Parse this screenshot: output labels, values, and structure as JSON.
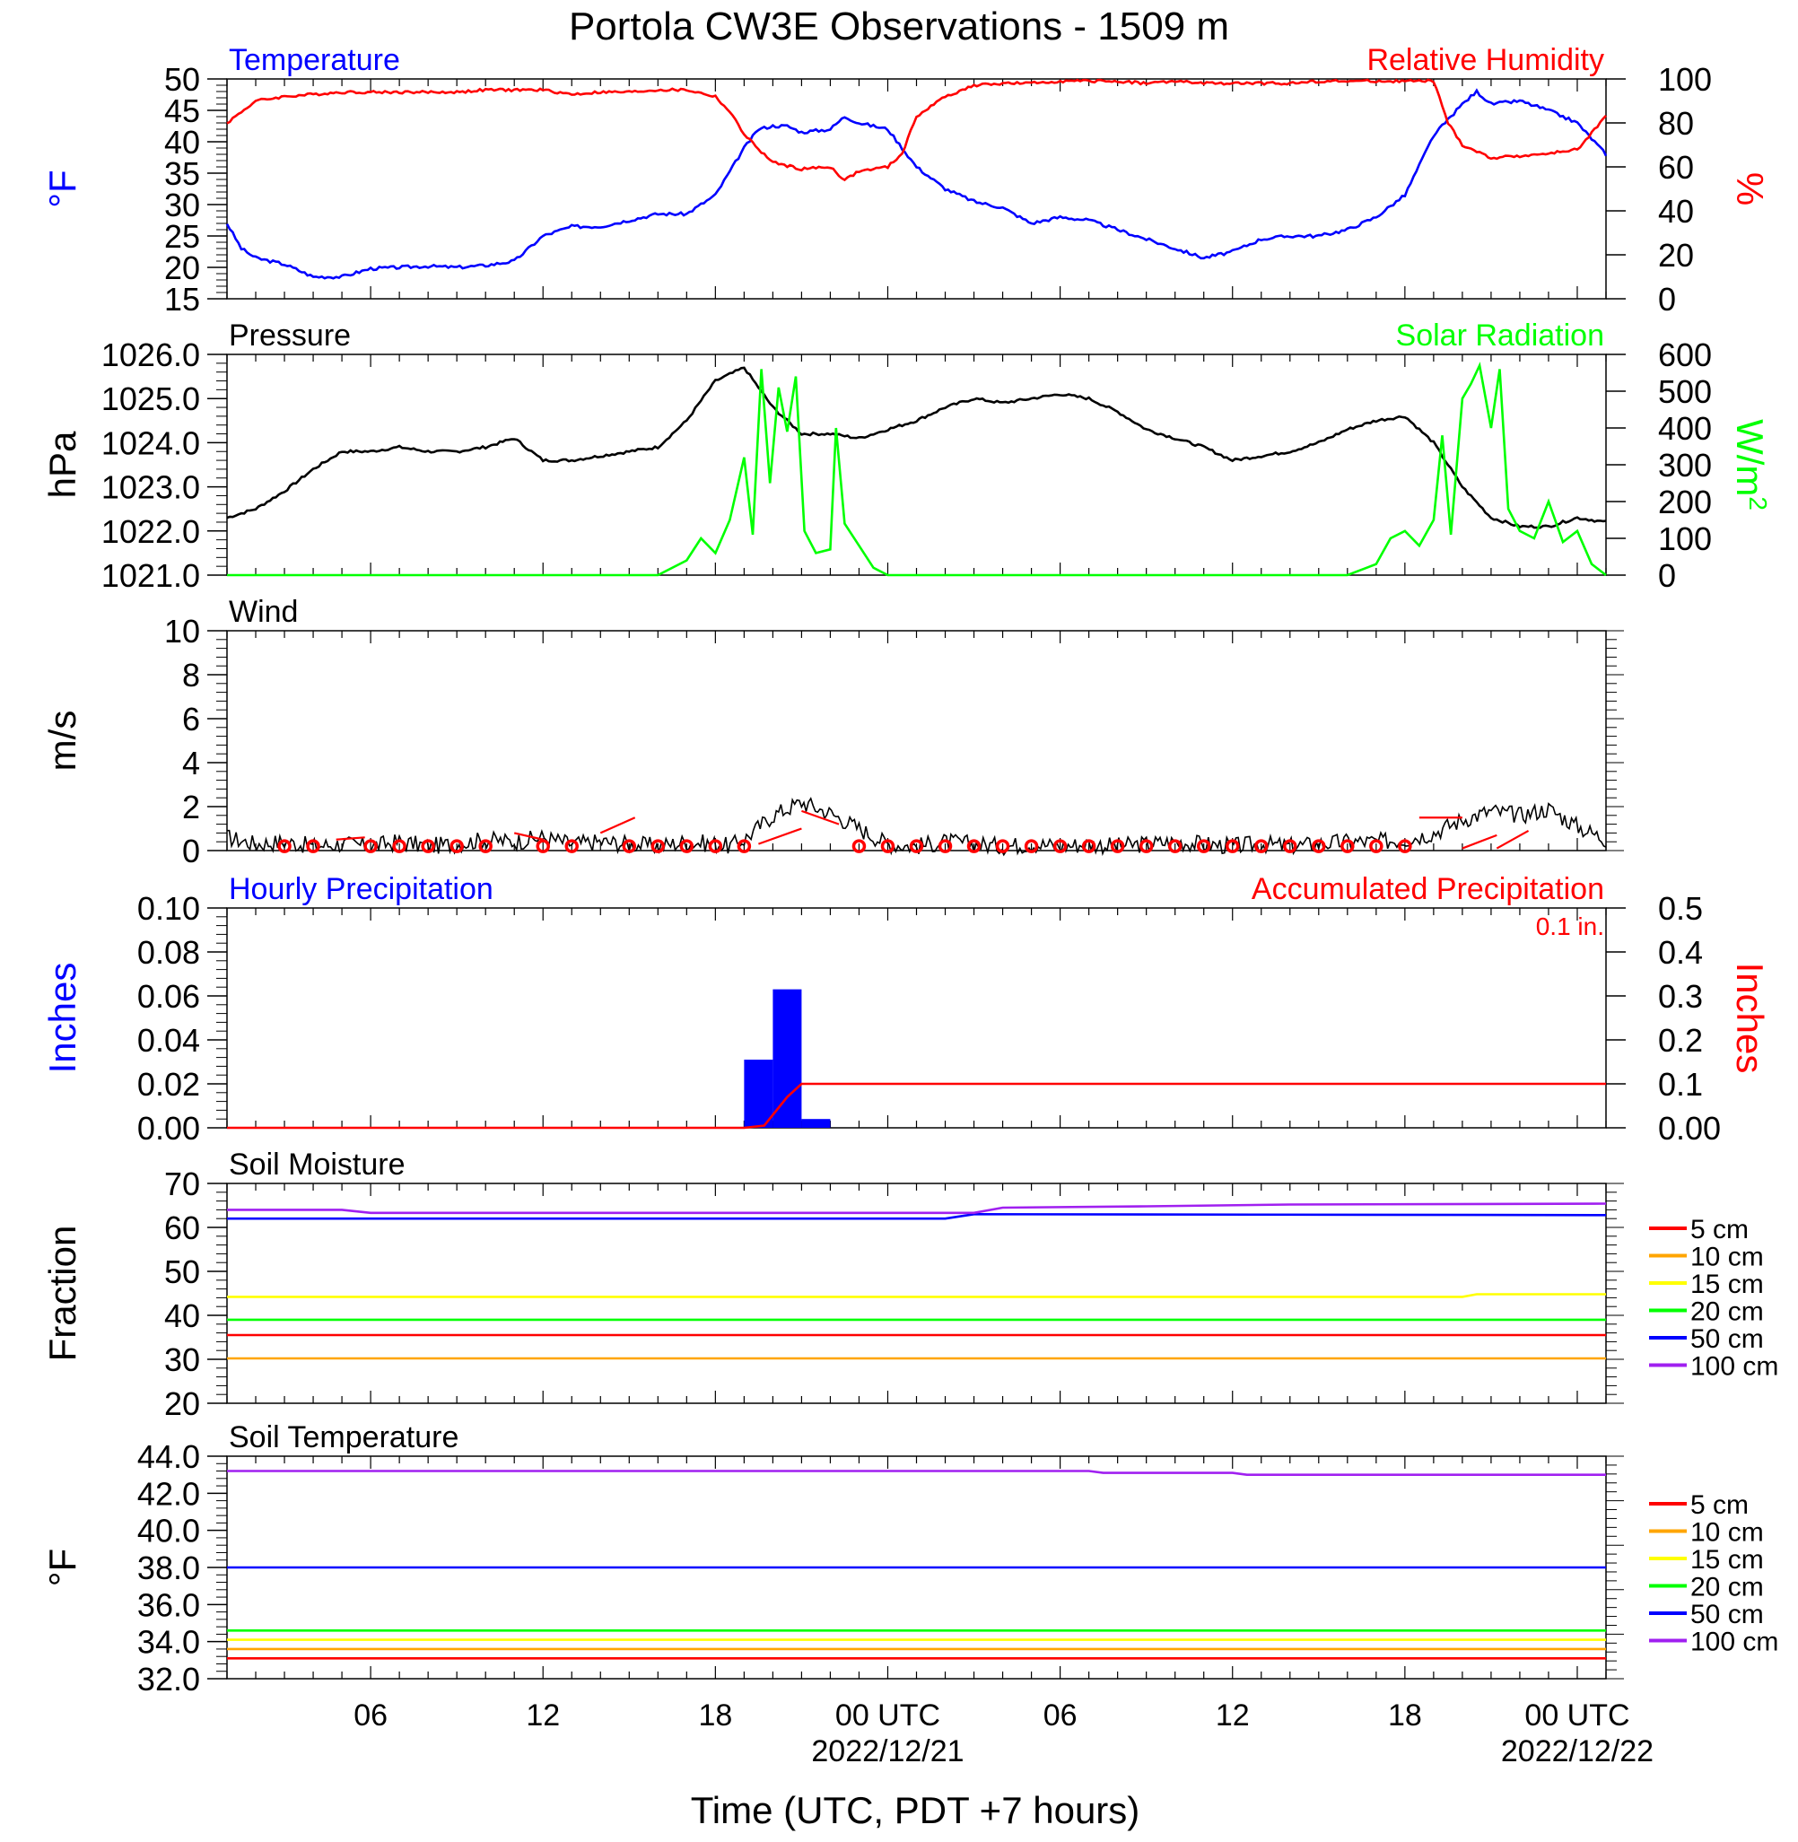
{
  "title": "Portola CW3E Observations - 1509 m",
  "x_axis": {
    "label": "Time (UTC, PDT +7 hours)",
    "tick_labels": [
      {
        "hour": 6,
        "label": "06"
      },
      {
        "hour": 12,
        "label": "12"
      },
      {
        "hour": 18,
        "label": "18"
      },
      {
        "hour": 24,
        "label": "00 UTC"
      },
      {
        "hour": 30,
        "label": "06"
      },
      {
        "hour": 36,
        "label": "12"
      },
      {
        "hour": 42,
        "label": "18"
      },
      {
        "hour": 48,
        "label": "00 UTC"
      }
    ],
    "date_labels": [
      {
        "hour": 24,
        "label": "2022/12/21"
      },
      {
        "hour": 48,
        "label": "2022/12/22"
      }
    ],
    "range_hours": [
      1,
      49
    ]
  },
  "colors": {
    "temperature": "#0000ff",
    "humidity": "#ff0000",
    "pressure": "#000000",
    "solar": "#00ff00",
    "wind": "#000000",
    "wind_barbs": "#ff0000",
    "hourly_precip": "#0000ff",
    "accum_precip": "#ff0000"
  },
  "chart_data": [
    {
      "id": "temp_rh",
      "type": "line",
      "left_title": "Temperature",
      "right_title": "Relative Humidity",
      "left_ylabel": "°F",
      "right_ylabel": "%",
      "left_ylim": [
        15,
        50
      ],
      "left_ticks": [
        15,
        20,
        25,
        30,
        35,
        40,
        45,
        50
      ],
      "right_ylim": [
        0,
        100
      ],
      "right_ticks": [
        0,
        20,
        40,
        60,
        80,
        100
      ],
      "series": [
        {
          "name": "Temperature",
          "axis": "left",
          "x": [
            1,
            1.5,
            2,
            3,
            4,
            5,
            6,
            7,
            8,
            9,
            10,
            11,
            12,
            13,
            14,
            15,
            16,
            17,
            18,
            19,
            19.5,
            20,
            20.5,
            21,
            22,
            22.5,
            23,
            24,
            25,
            26,
            27,
            28,
            29,
            30,
            31,
            32,
            33,
            34,
            35,
            36,
            37,
            38,
            39,
            40,
            41,
            42,
            43,
            44,
            44.5,
            45,
            46,
            47,
            48,
            49
          ],
          "y": [
            27,
            23,
            21.5,
            20.5,
            18.5,
            18.5,
            19.8,
            20,
            20.2,
            20,
            20.3,
            21,
            25,
            26.5,
            26.5,
            27.5,
            28.5,
            28.5,
            31.5,
            39,
            42,
            42.5,
            42.5,
            41.5,
            42,
            44,
            43,
            42,
            36,
            32.5,
            30.5,
            29.5,
            27,
            28,
            27.5,
            26,
            24.5,
            23,
            21.5,
            22.5,
            24.5,
            25,
            25,
            26,
            28,
            31.5,
            41,
            46,
            48,
            46,
            46.5,
            45,
            43,
            38
          ]
        },
        {
          "name": "Relative Humidity",
          "axis": "right",
          "x": [
            1,
            2,
            3,
            4,
            5,
            6,
            7,
            8,
            9,
            10,
            11,
            12,
            13,
            14,
            15,
            16,
            17,
            18,
            18.5,
            19,
            19.5,
            20,
            21,
            22,
            22.5,
            23,
            24,
            24.5,
            25,
            26,
            27,
            28,
            29,
            30,
            31,
            32,
            33,
            34,
            35,
            36,
            37,
            38,
            39,
            40,
            41,
            42,
            43,
            43.5,
            44,
            45,
            46,
            47,
            48,
            49
          ],
          "y": [
            80,
            90,
            92,
            93,
            94,
            94,
            94,
            94,
            94,
            95,
            95,
            95,
            93,
            94,
            94,
            95,
            95,
            92,
            85,
            75,
            68,
            62,
            59,
            60,
            54,
            58,
            60,
            66,
            83,
            92,
            97,
            98,
            98,
            99,
            99,
            99,
            98,
            99,
            98,
            98,
            98,
            98,
            99,
            99,
            99,
            99,
            99,
            80,
            70,
            64,
            65,
            66,
            68,
            83
          ]
        }
      ]
    },
    {
      "id": "pressure_solar",
      "type": "line",
      "left_title": "Pressure",
      "right_title": "Solar Radiation",
      "left_ylabel": "hPa",
      "right_ylabel": "W/m",
      "right_ylabel_sup": "2",
      "left_ylim": [
        1021.0,
        1026.0
      ],
      "left_ticks": [
        "1021.0",
        "1022.0",
        "1023.0",
        "1024.0",
        "1025.0",
        "1026.0"
      ],
      "right_ylim": [
        0,
        600
      ],
      "right_ticks": [
        0,
        100,
        200,
        300,
        400,
        500,
        600
      ],
      "series": [
        {
          "name": "Pressure",
          "axis": "left",
          "x": [
            1,
            2,
            3,
            4,
            5,
            6,
            7,
            8,
            9,
            10,
            11,
            12,
            13,
            14,
            15,
            16,
            17,
            18,
            19,
            20,
            21,
            22,
            23,
            24,
            25,
            26,
            27,
            28,
            29,
            30,
            31,
            32,
            33,
            34,
            35,
            36,
            37,
            38,
            39,
            40,
            41,
            42,
            43,
            44,
            45,
            46,
            47,
            48,
            49
          ],
          "y": [
            1022.3,
            1022.5,
            1022.9,
            1023.4,
            1023.8,
            1023.8,
            1023.9,
            1023.8,
            1023.8,
            1023.9,
            1024.1,
            1023.6,
            1023.6,
            1023.7,
            1023.8,
            1023.9,
            1024.5,
            1025.4,
            1025.7,
            1024.8,
            1024.2,
            1024.2,
            1024.1,
            1024.3,
            1024.5,
            1024.8,
            1025.0,
            1024.9,
            1025.0,
            1025.1,
            1025.0,
            1024.7,
            1024.3,
            1024.1,
            1023.9,
            1023.6,
            1023.7,
            1023.8,
            1024.0,
            1024.3,
            1024.5,
            1024.6,
            1024.0,
            1023.0,
            1022.3,
            1022.1,
            1022.1,
            1022.3,
            1022.2
          ]
        },
        {
          "name": "Solar Radiation",
          "axis": "right",
          "x": [
            1,
            16,
            17,
            17.5,
            18,
            18.5,
            19,
            19.3,
            19.6,
            19.9,
            20.2,
            20.5,
            20.8,
            21.1,
            21.5,
            22,
            22.2,
            22.5,
            23,
            23.5,
            24,
            40,
            41,
            41.5,
            42,
            42.5,
            43,
            43.3,
            43.6,
            44,
            44.3,
            44.6,
            45,
            45.3,
            45.6,
            46,
            46.5,
            47,
            47.5,
            48,
            48.5,
            49
          ],
          "y": [
            0,
            0,
            40,
            100,
            60,
            150,
            320,
            110,
            560,
            250,
            510,
            390,
            540,
            120,
            60,
            70,
            400,
            140,
            80,
            20,
            0,
            0,
            30,
            100,
            120,
            80,
            150,
            380,
            110,
            480,
            520,
            570,
            400,
            560,
            180,
            120,
            100,
            200,
            90,
            120,
            30,
            0
          ]
        }
      ]
    },
    {
      "id": "wind",
      "type": "line",
      "left_title": "Wind",
      "left_ylabel": "m/s",
      "left_ylim": [
        0,
        10
      ],
      "left_ticks": [
        0,
        2,
        4,
        6,
        8,
        10
      ],
      "series": [
        {
          "name": "Wind",
          "axis": "left",
          "x": [
            1,
            2,
            3,
            4,
            5,
            6,
            7,
            8,
            9,
            10,
            11,
            12,
            13,
            14,
            15,
            16,
            17,
            18,
            18.5,
            19,
            20,
            21,
            22,
            23,
            24,
            25,
            26,
            27,
            28,
            29,
            30,
            31,
            32,
            33,
            34,
            35,
            36,
            37,
            38,
            39,
            40,
            41,
            42,
            43,
            44,
            45,
            46,
            47,
            48,
            49
          ],
          "y": [
            0.6,
            0.3,
            0.4,
            0.2,
            0.3,
            0.2,
            0.4,
            0.2,
            0.3,
            0.5,
            0.4,
            0.6,
            0.3,
            0.4,
            0.3,
            0.2,
            0.4,
            0.3,
            0.2,
            0.5,
            1.6,
            2.2,
            1.7,
            1.0,
            0.3,
            0.2,
            0.4,
            0.3,
            0.2,
            0.3,
            0.2,
            0.3,
            0.2,
            0.3,
            0.4,
            0.3,
            0.2,
            0.3,
            0.2,
            0.3,
            0.4,
            0.4,
            0.5,
            0.8,
            1.4,
            1.8,
            1.6,
            1.9,
            1.1,
            0.5
          ]
        }
      ],
      "barbs_x": [
        3,
        4,
        6,
        7,
        8,
        9,
        10,
        12,
        13,
        15,
        16,
        17,
        18,
        19,
        23,
        24,
        25,
        26,
        27,
        28,
        29,
        30,
        31,
        32,
        33,
        34,
        35,
        36,
        37,
        38,
        39,
        40,
        41,
        42
      ]
    },
    {
      "id": "precip",
      "type": "bar",
      "left_title": "Hourly Precipitation",
      "right_title": "Accumulated Precipitation",
      "right_note": "0.1 in.",
      "left_ylabel": "Inches",
      "right_ylabel": "Inches",
      "left_ylim": [
        0,
        0.1
      ],
      "left_ticks": [
        "0.00",
        "0.02",
        "0.04",
        "0.06",
        "0.08",
        "0.10"
      ],
      "right_ylim": [
        0,
        0.5
      ],
      "right_ticks": [
        "0.00",
        "0.1",
        "0.2",
        "0.3",
        "0.4",
        "0.5"
      ],
      "bars": [
        {
          "x": 19.5,
          "value": 0.031
        },
        {
          "x": 20.5,
          "value": 0.063
        },
        {
          "x": 21.5,
          "value": 0.004
        }
      ],
      "accum": {
        "name": "Accumulated Precipitation",
        "x": [
          1,
          19,
          19.7,
          20.5,
          21,
          49
        ],
        "y": [
          0,
          0,
          0.005,
          0.07,
          0.1,
          0.1
        ]
      }
    },
    {
      "id": "soil_moisture",
      "type": "line",
      "left_title": "Soil Moisture",
      "left_ylabel": "Fraction",
      "left_ylim": [
        20,
        70
      ],
      "left_ticks": [
        20,
        30,
        40,
        50,
        60,
        70
      ],
      "series": [
        {
          "name": "5 cm",
          "color": "#ff0000",
          "x": [
            1,
            49
          ],
          "y": [
            35.5,
            35.5
          ]
        },
        {
          "name": "10 cm",
          "color": "#ffa500",
          "x": [
            1,
            49
          ],
          "y": [
            30.2,
            30.2
          ]
        },
        {
          "name": "15 cm",
          "color": "#ffff00",
          "x": [
            1,
            44,
            44.5,
            49
          ],
          "y": [
            44.2,
            44.2,
            44.8,
            44.8
          ]
        },
        {
          "name": "20 cm",
          "color": "#00ff00",
          "x": [
            1,
            49
          ],
          "y": [
            39,
            39
          ]
        },
        {
          "name": "50 cm",
          "color": "#0000ff",
          "x": [
            1,
            26,
            27,
            49
          ],
          "y": [
            62,
            62,
            63,
            62.8
          ]
        },
        {
          "name": "100 cm",
          "color": "#a020f0",
          "x": [
            1,
            5,
            6,
            27,
            28,
            33,
            38,
            49
          ],
          "y": [
            64,
            64,
            63.3,
            63.3,
            64.5,
            64.8,
            65.2,
            65.4
          ]
        }
      ]
    },
    {
      "id": "soil_temperature",
      "type": "line",
      "left_title": "Soil Temperature",
      "left_ylabel": "°F",
      "left_ylim": [
        32.0,
        44.0
      ],
      "left_ticks": [
        "32.0",
        "34.0",
        "36.0",
        "38.0",
        "40.0",
        "42.0",
        "44.0"
      ],
      "series": [
        {
          "name": "5 cm",
          "color": "#ff0000",
          "x": [
            1,
            49
          ],
          "y": [
            33.1,
            33.1
          ]
        },
        {
          "name": "10 cm",
          "color": "#ffa500",
          "x": [
            1,
            49
          ],
          "y": [
            33.6,
            33.6
          ]
        },
        {
          "name": "15 cm",
          "color": "#ffff00",
          "x": [
            1,
            49
          ],
          "y": [
            34.1,
            34.1
          ]
        },
        {
          "name": "20 cm",
          "color": "#00ff00",
          "x": [
            1,
            49
          ],
          "y": [
            34.6,
            34.6
          ]
        },
        {
          "name": "50 cm",
          "color": "#0000ff",
          "x": [
            1,
            49
          ],
          "y": [
            38.0,
            38.0
          ]
        },
        {
          "name": "100 cm",
          "color": "#a020f0",
          "x": [
            1,
            31,
            31.5,
            36,
            36.5,
            49
          ],
          "y": [
            43.2,
            43.2,
            43.1,
            43.1,
            43.0,
            43.0
          ]
        }
      ]
    }
  ]
}
